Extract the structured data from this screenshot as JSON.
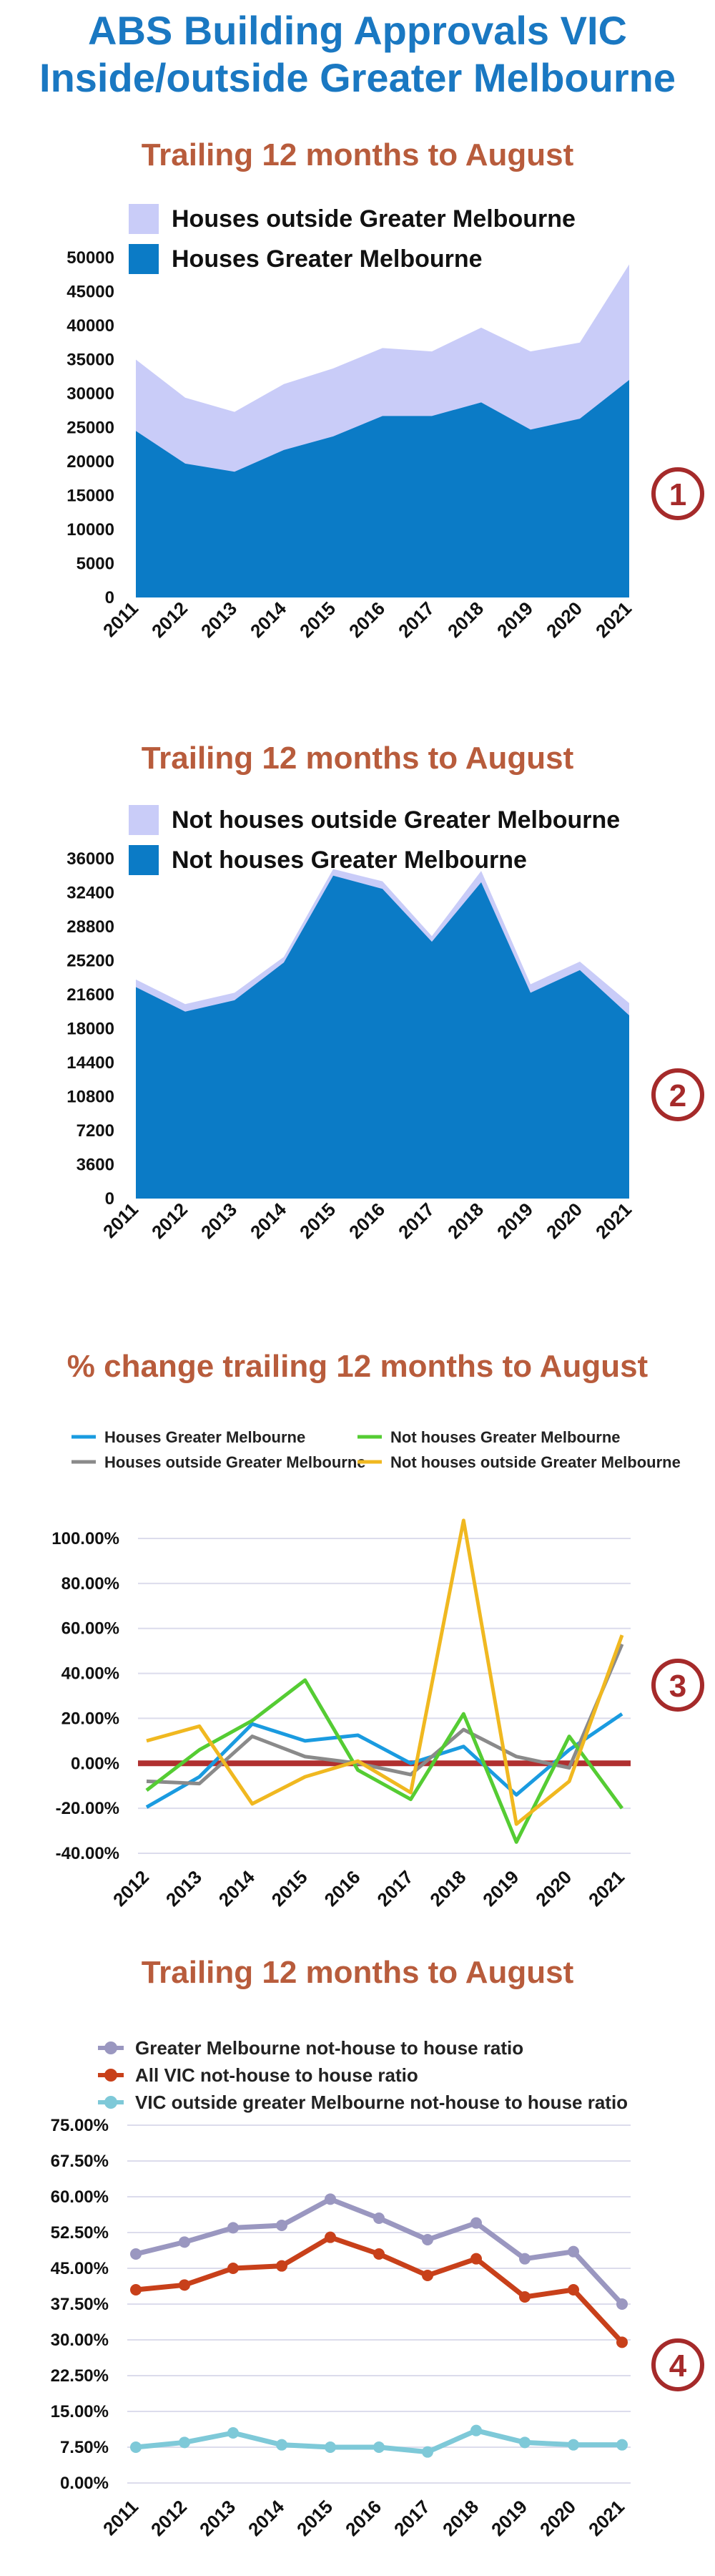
{
  "header": {
    "title_line1": "ABS Building Approvals VIC",
    "title_line2": "Inside/outside Greater Melbourne"
  },
  "colors": {
    "title": "#1a78c2",
    "chart_title": "#b85c3c",
    "badge": "#a52a2a",
    "area_dark": "#0b7bc6",
    "area_light": "#c9ccf8"
  },
  "chart_data": [
    {
      "type": "area",
      "stacked": true,
      "title": "Trailing 12 months to August",
      "badge": "1",
      "x": [
        "2011",
        "2012",
        "2013",
        "2014",
        "2015",
        "2016",
        "2017",
        "2018",
        "2019",
        "2020",
        "2021"
      ],
      "ylim": [
        0,
        50000
      ],
      "yticks": [
        "0",
        "5000",
        "10000",
        "15000",
        "20000",
        "25000",
        "30000",
        "35000",
        "40000",
        "45000",
        "50000"
      ],
      "legend_position": "top-left",
      "series": [
        {
          "name": "Houses outside Greater Melbourne",
          "color": "#c9ccf8",
          "values": [
            10500,
            9700,
            8800,
            9700,
            10000,
            10000,
            9500,
            11000,
            11500,
            11200,
            17000
          ]
        },
        {
          "name": "Houses Greater Melbourne",
          "color": "#0b7bc6",
          "values": [
            24500,
            19700,
            18500,
            21700,
            23700,
            26700,
            26700,
            28700,
            24700,
            26300,
            32000
          ]
        }
      ]
    },
    {
      "type": "area",
      "stacked": true,
      "title": "Trailing 12 months to August",
      "badge": "2",
      "x": [
        "2011",
        "2012",
        "2013",
        "2014",
        "2015",
        "2016",
        "2017",
        "2018",
        "2019",
        "2020",
        "2021"
      ],
      "ylim": [
        0,
        36000
      ],
      "yticks": [
        "0",
        "3600",
        "7200",
        "10800",
        "14400",
        "18000",
        "21600",
        "25200",
        "28800",
        "32400",
        "36000"
      ],
      "legend_position": "top-left",
      "series": [
        {
          "name": "Not houses outside Greater Melbourne",
          "color": "#c9ccf8",
          "values": [
            800,
            800,
            800,
            600,
            700,
            800,
            600,
            1200,
            900,
            900,
            1300
          ]
        },
        {
          "name": "Not houses Greater Melbourne",
          "color": "#0b7bc6",
          "values": [
            22400,
            19800,
            21000,
            25000,
            34200,
            32800,
            27200,
            33500,
            21800,
            24200,
            19400
          ]
        }
      ]
    },
    {
      "type": "line",
      "title": "% change trailing 12 months to August",
      "badge": "3",
      "x": [
        "2012",
        "2013",
        "2014",
        "2015",
        "2016",
        "2017",
        "2018",
        "2019",
        "2020",
        "2021"
      ],
      "ylim": [
        -40,
        100
      ],
      "yticks": [
        "-40.00%",
        "-20.00%",
        "0.00%",
        "20.00%",
        "40.00%",
        "60.00%",
        "80.00%",
        "100.00%"
      ],
      "legend_position": "top",
      "zero_line_color": "#b03030",
      "series": [
        {
          "name": "Houses Greater Melbourne",
          "color": "#1a9be0",
          "values": [
            -19.5,
            -6,
            17.5,
            10,
            12.5,
            0,
            7.5,
            -14,
            6,
            22
          ]
        },
        {
          "name": "Houses outside Greater Melbourne",
          "color": "#8a8a8a",
          "values": [
            -8,
            -9,
            12,
            3,
            0,
            -5,
            15,
            3,
            -2,
            53
          ]
        },
        {
          "name": "Not houses Greater Melbourne",
          "color": "#55cc33",
          "values": [
            -12,
            6,
            19,
            37,
            -3,
            -16,
            22,
            -35,
            12,
            -20
          ]
        },
        {
          "name": "Not houses outside Greater Melbourne",
          "color": "#f0b820",
          "values": [
            10,
            16.5,
            -18,
            -6,
            1,
            -13,
            108,
            -27,
            -8,
            57
          ]
        }
      ]
    },
    {
      "type": "line",
      "title": "Trailing 12 months to August",
      "badge": "4",
      "x": [
        "2011",
        "2012",
        "2013",
        "2014",
        "2015",
        "2016",
        "2017",
        "2018",
        "2019",
        "2020",
        "2021"
      ],
      "ylim": [
        0,
        75
      ],
      "yticks": [
        "0.00%",
        "7.50%",
        "15.00%",
        "22.50%",
        "30.00%",
        "37.50%",
        "45.00%",
        "52.50%",
        "60.00%",
        "67.50%",
        "75.00%"
      ],
      "legend_position": "top",
      "series": [
        {
          "name": "Greater Melbourne not-house to house ratio",
          "color": "#9a97c0",
          "values": [
            48,
            50.5,
            53.5,
            54,
            59.5,
            55.5,
            51,
            54.5,
            47,
            48.5,
            37.5
          ]
        },
        {
          "name": "All VIC  not-house to house ratio",
          "color": "#c8401a",
          "values": [
            40.5,
            41.5,
            45,
            45.5,
            51.5,
            48,
            43.5,
            47,
            39,
            40.5,
            29.5
          ]
        },
        {
          "name": "VIC outside greater Melbourne not-house to house ratio",
          "color": "#7ec9d8",
          "values": [
            7.5,
            8.5,
            10.5,
            8,
            7.5,
            7.5,
            6.5,
            11,
            8.5,
            8,
            8
          ]
        }
      ]
    }
  ]
}
